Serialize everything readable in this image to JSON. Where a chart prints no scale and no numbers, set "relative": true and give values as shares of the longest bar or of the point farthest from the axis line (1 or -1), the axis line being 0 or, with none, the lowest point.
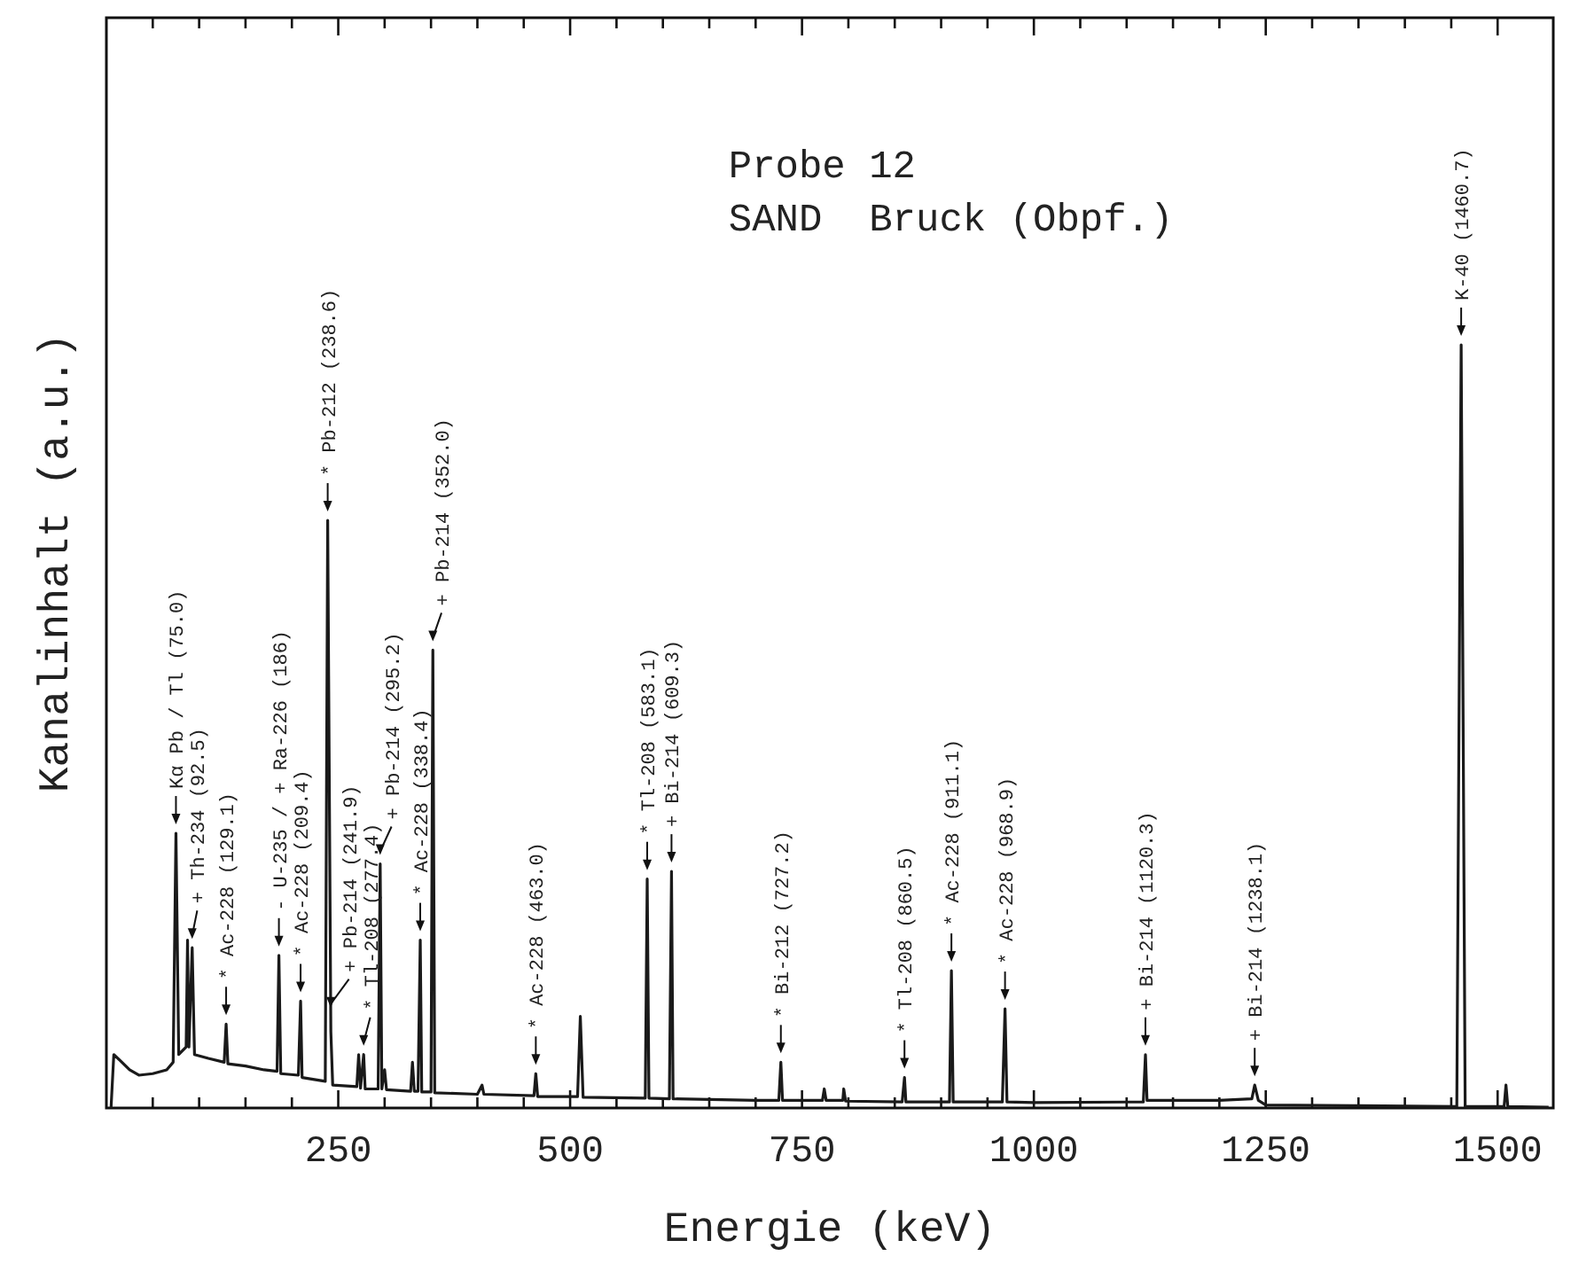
{
  "chart_data": {
    "type": "line",
    "title": "Probe 12",
    "subtitle": "SAND  Bruck (Obpf.)",
    "xlabel": "Energie (keV)",
    "ylabel": "Kanalinhalt (a.u.)",
    "relative": true,
    "line_style": "solid",
    "xlim": [
      0,
      1560
    ],
    "xticks": [
      {
        "value": 50,
        "label": null
      },
      {
        "value": 100,
        "label": null
      },
      {
        "value": 150,
        "label": null
      },
      {
        "value": 200,
        "label": null
      },
      250,
      {
        "value": 300,
        "label": null
      },
      {
        "value": 350,
        "label": null
      },
      {
        "value": 400,
        "label": null
      },
      {
        "value": 450,
        "label": null
      },
      500,
      {
        "value": 550,
        "label": null
      },
      {
        "value": 600,
        "label": null
      },
      {
        "value": 650,
        "label": null
      },
      {
        "value": 700,
        "label": null
      },
      750,
      {
        "value": 800,
        "label": null
      },
      {
        "value": 850,
        "label": null
      },
      {
        "value": 900,
        "label": null
      },
      {
        "value": 950,
        "label": null
      },
      1000,
      {
        "value": 1050,
        "label": null
      },
      {
        "value": 1100,
        "label": null
      },
      {
        "value": 1150,
        "label": null
      },
      {
        "value": 1200,
        "label": null
      },
      1250,
      {
        "value": 1300,
        "label": null
      },
      {
        "value": 1350,
        "label": null
      },
      {
        "value": 1400,
        "label": null
      },
      {
        "value": 1450,
        "label": null
      },
      1500
    ],
    "series": [
      {
        "color": "#1a1a1a",
        "x": [
          5,
          8,
          15,
          25,
          35,
          50,
          65,
          72,
          75,
          78,
          86,
          87.5,
          89,
          92.5,
          95,
          110,
          127,
          129.1,
          131,
          150,
          170,
          184,
          186,
          188,
          207,
          209.4,
          211,
          236,
          238.6,
          241.9,
          242,
          244,
          270,
          272,
          274,
          277.4,
          279,
          293,
          295.2,
          297,
          300,
          302,
          328,
          330,
          332,
          336,
          338.4,
          340,
          350,
          352,
          354,
          400,
          405,
          407,
          461,
          463,
          465,
          508,
          511,
          514,
          581,
          583.1,
          585,
          607,
          609.3,
          611,
          700,
          725,
          727.2,
          729,
          772,
          774,
          776,
          794,
          795,
          797,
          858,
          860.5,
          862,
          909,
          911.1,
          913,
          966,
          968.9,
          971,
          1000,
          1118,
          1120.3,
          1122,
          1200,
          1235,
          1238.1,
          1242,
          1250,
          1350,
          1456,
          1460.7,
          1465,
          1507,
          1509,
          1511,
          1555
        ],
        "values": [
          0,
          0.07,
          0.062,
          0.05,
          0.043,
          0.045,
          0.05,
          0.06,
          0.36,
          0.07,
          0.08,
          0.22,
          0.08,
          0.21,
          0.07,
          0.065,
          0.06,
          0.11,
          0.058,
          0.055,
          0.05,
          0.048,
          0.2,
          0.045,
          0.043,
          0.14,
          0.04,
          0.035,
          0.77,
          0.12,
          0.1,
          0.03,
          0.028,
          0.07,
          0.026,
          0.07,
          0.025,
          0.025,
          0.32,
          0.025,
          0.05,
          0.024,
          0.022,
          0.06,
          0.022,
          0.022,
          0.22,
          0.021,
          0.021,
          0.6,
          0.02,
          0.018,
          0.03,
          0.018,
          0.016,
          0.045,
          0.015,
          0.015,
          0.12,
          0.014,
          0.013,
          0.3,
          0.013,
          0.012,
          0.31,
          0.012,
          0.01,
          0.01,
          0.06,
          0.01,
          0.01,
          0.025,
          0.01,
          0.01,
          0.025,
          0.009,
          0.008,
          0.04,
          0.008,
          0.008,
          0.18,
          0.008,
          0.008,
          0.13,
          0.008,
          0.007,
          0.008,
          0.07,
          0.01,
          0.01,
          0.012,
          0.03,
          0.01,
          0.004,
          0.003,
          0.002,
          1,
          0.002,
          0.002,
          0.03,
          0.002,
          0.001
        ]
      }
    ],
    "annotations": [
      {
        "text": "Kα  Pb / Tl (75.0)",
        "x": 75,
        "y": 0.36
      },
      {
        "text": "+ Th-234 (92.5)",
        "x": 92.5,
        "y": 0.21
      },
      {
        "text": "* Ac-228 (129.1)",
        "x": 129.1,
        "y": 0.11
      },
      {
        "text": "- U-235 / + Ra-226 (186)",
        "x": 186,
        "y": 0.2
      },
      {
        "text": "* Ac-228 (209.4)",
        "x": 209.4,
        "y": 0.14
      },
      {
        "text": "* Pb-212 (238.6)",
        "x": 238.6,
        "y": 0.77
      },
      {
        "text": "+ Pb-214 (241.9)",
        "x": 241.9,
        "y": 0.12
      },
      {
        "text": "* Tl-208 (277.4)",
        "x": 277.4,
        "y": 0.07
      },
      {
        "text": "+ Pb-214 (295.2)",
        "x": 295.2,
        "y": 0.32
      },
      {
        "text": "* Ac-228 (338.4)",
        "x": 338.4,
        "y": 0.22
      },
      {
        "text": "+ Pb-214 (352.0)",
        "x": 352,
        "y": 0.6
      },
      {
        "text": "* Ac-228 (463.0)",
        "x": 463,
        "y": 0.045
      },
      {
        "text": "* Tl-208 (583.1)",
        "x": 583.1,
        "y": 0.3
      },
      {
        "text": "+ Bi-214 (609.3)",
        "x": 609.3,
        "y": 0.31
      },
      {
        "text": "* Bi-212 (727.2)",
        "x": 727.2,
        "y": 0.06
      },
      {
        "text": "* Tl-208 (860.5)",
        "x": 860.5,
        "y": 0.04
      },
      {
        "text": "* Ac-228 (911.1)",
        "x": 911.1,
        "y": 0.18
      },
      {
        "text": "* Ac-228 (968.9)",
        "x": 968.9,
        "y": 0.13
      },
      {
        "text": "+ Bi-214 (1120.3)",
        "x": 1120.3,
        "y": 0.07
      },
      {
        "text": "+ Bi-214 (1238.1)",
        "x": 1238.1,
        "y": 0.03
      },
      {
        "text": "K-40 (1460.7)",
        "x": 1460.7,
        "y": 1
      }
    ]
  }
}
